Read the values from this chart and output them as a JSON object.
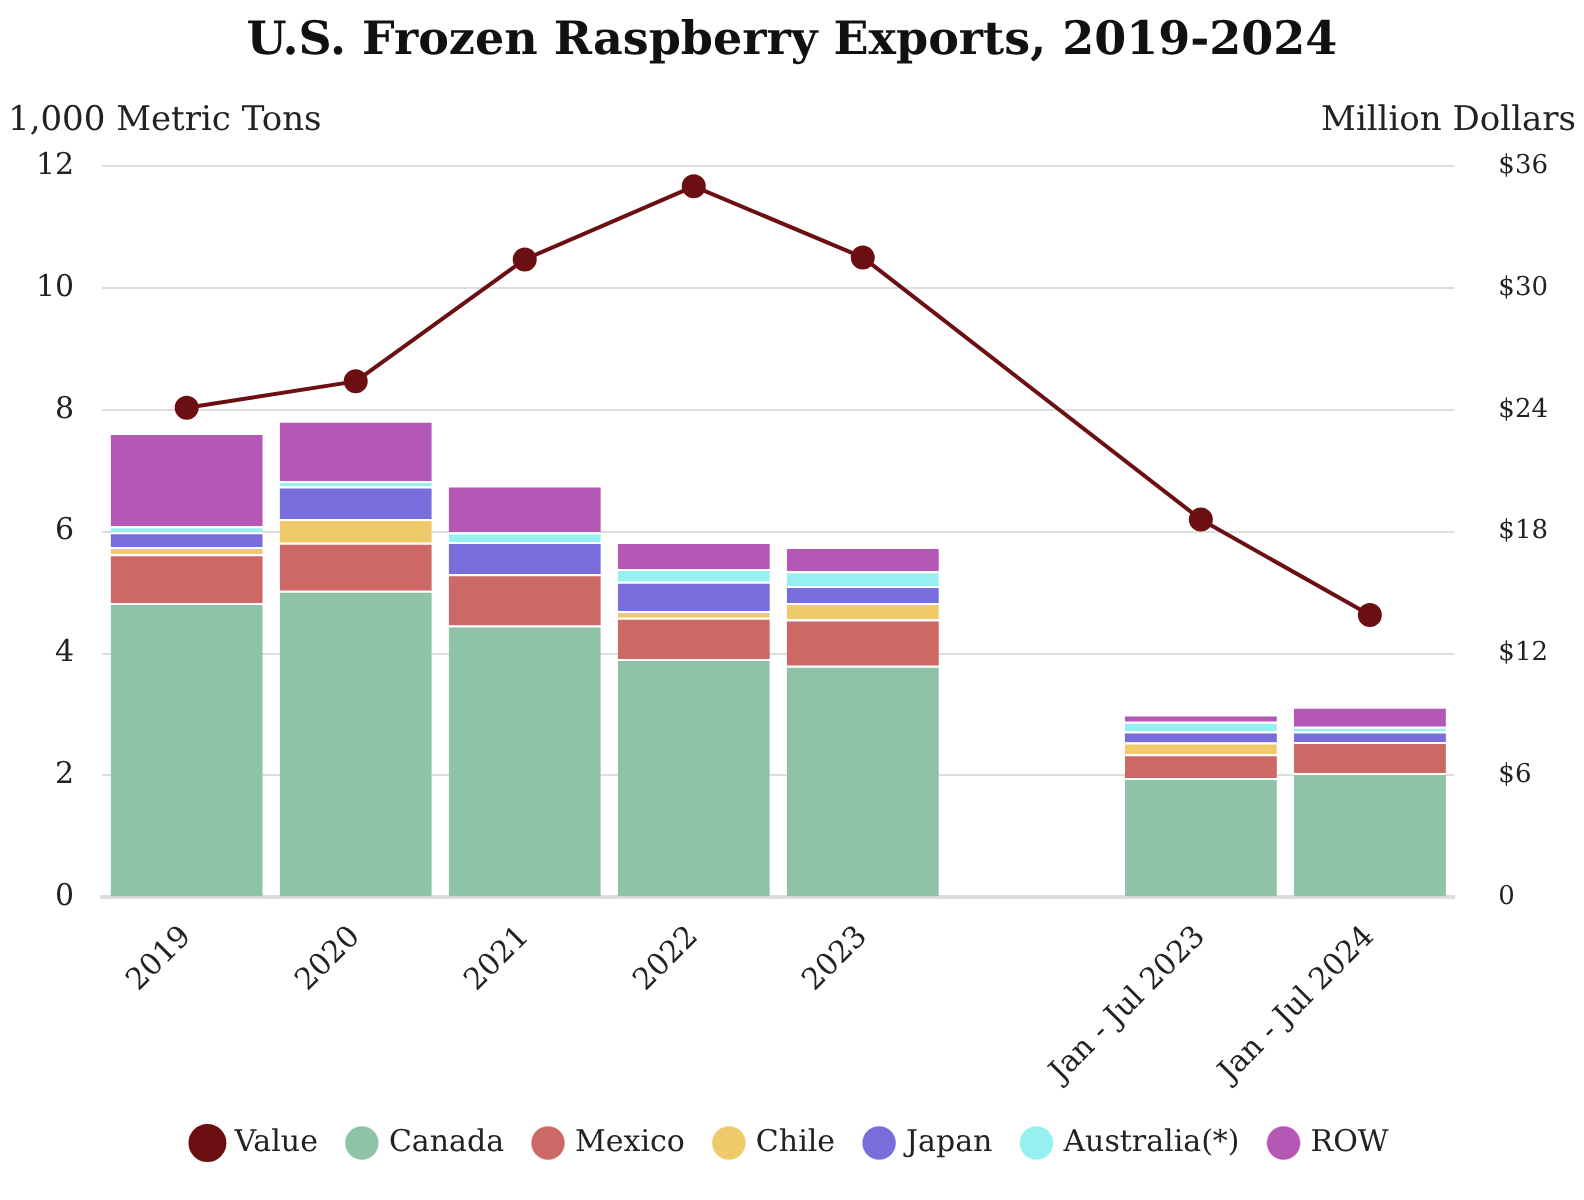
{
  "chart_data": {
    "type": "bar",
    "title": "U.S. Frozen Raspberry Exports, 2019-2024",
    "ylabel": "1,000 Metric Tons",
    "y2label": "Million Dollars",
    "categories": [
      "2019",
      "2020",
      "2021",
      "2022",
      "2023",
      null,
      "Jan - Jul 2023",
      "Jan - Jul 2024"
    ],
    "stacked": true,
    "grid": "y",
    "legend": "bottom",
    "marker": "circle",
    "ylim": [
      0,
      12
    ],
    "yticks": [
      0,
      2,
      4,
      6,
      8,
      10,
      12
    ],
    "y2lim": [
      0,
      36
    ],
    "y2ticks": [
      0,
      {
        "value": 6,
        "label": "$6"
      },
      {
        "value": 12,
        "label": "$12"
      },
      {
        "value": 18,
        "label": "$18"
      },
      {
        "value": 24,
        "label": "$24"
      },
      {
        "value": 30,
        "label": "$30"
      },
      {
        "value": 36,
        "label": "$36"
      }
    ],
    "series": [
      {
        "name": "Canada",
        "color": "#8fc3a7",
        "values": [
          4.83,
          5.03,
          4.46,
          3.91,
          3.8,
          null,
          1.96,
          2.04
        ]
      },
      {
        "name": "Mexico",
        "color": "#cc6966",
        "values": [
          0.8,
          0.79,
          0.84,
          0.68,
          0.76,
          null,
          0.39,
          0.51
        ]
      },
      {
        "name": "Chile",
        "color": "#f0c96a",
        "values": [
          0.12,
          0.39,
          0,
          0.11,
          0.27,
          null,
          0.19,
          0
        ]
      },
      {
        "name": "Japan",
        "color": "#786ddb",
        "values": [
          0.24,
          0.53,
          0.53,
          0.48,
          0.28,
          null,
          0.18,
          0.17
        ]
      },
      {
        "name": "Australia(*)",
        "color": "#96f0f0",
        "values": [
          0.1,
          0.09,
          0.16,
          0.21,
          0.24,
          null,
          0.16,
          0.08
        ]
      },
      {
        "name": "ROW",
        "color": "#b557b5",
        "values": [
          1.53,
          0.99,
          0.77,
          0.44,
          0.4,
          null,
          0.12,
          0.33
        ]
      },
      {
        "name": "Value",
        "type": "line",
        "axis": "y2",
        "color": "#6b0f12",
        "values": [
          24.1,
          25.4,
          31.4,
          35.0,
          31.5,
          null,
          18.6,
          13.9
        ]
      }
    ]
  }
}
